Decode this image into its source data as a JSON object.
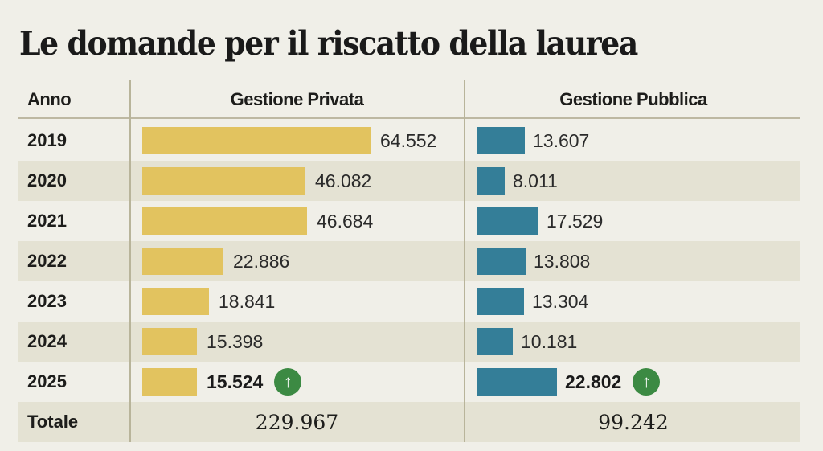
{
  "title": "Le domande per il riscatto della laurea",
  "headers": {
    "year": "Anno",
    "private": "Gestione Privata",
    "public": "Gestione Pubblica"
  },
  "colors": {
    "private": "#e2c35f",
    "public": "#347e98",
    "up_badge": "#3c8a43"
  },
  "rows": [
    {
      "year": "2019",
      "private": "64.552",
      "public": "13.607",
      "private_n": 64552,
      "public_n": 13607
    },
    {
      "year": "2020",
      "private": "46.082",
      "public": "8.011",
      "private_n": 46082,
      "public_n": 8011
    },
    {
      "year": "2021",
      "private": "46.684",
      "public": "17.529",
      "private_n": 46684,
      "public_n": 17529
    },
    {
      "year": "2022",
      "private": "22.886",
      "public": "13.808",
      "private_n": 22886,
      "public_n": 13808
    },
    {
      "year": "2023",
      "private": "18.841",
      "public": "13.304",
      "private_n": 18841,
      "public_n": 13304
    },
    {
      "year": "2024",
      "private": "15.398",
      "public": "10.181",
      "private_n": 15398,
      "public_n": 10181
    },
    {
      "year": "2025",
      "private": "15.524",
      "public": "22.802",
      "private_n": 15524,
      "public_n": 22802,
      "highlight": true,
      "icon": "arrow-up-icon"
    }
  ],
  "total": {
    "label": "Totale",
    "private": "229.967",
    "public": "99.242"
  },
  "up_glyph": "↑",
  "chart_data": {
    "type": "bar",
    "title": "Le domande per il riscatto della laurea",
    "orientation": "horizontal",
    "categories": [
      "2019",
      "2020",
      "2021",
      "2022",
      "2023",
      "2024",
      "2025"
    ],
    "series": [
      {
        "name": "Gestione Privata",
        "values": [
          64552,
          46082,
          46684,
          22886,
          18841,
          15398,
          15524
        ],
        "color": "#e2c35f"
      },
      {
        "name": "Gestione Pubblica",
        "values": [
          13607,
          8011,
          17529,
          13808,
          13304,
          10181,
          22802
        ],
        "color": "#347e98"
      }
    ],
    "totals": {
      "Gestione Privata": 229967,
      "Gestione Pubblica": 99242
    },
    "xlabel": "",
    "ylabel": "Anno",
    "annotations": [
      "2025 values marked with green up-arrow badge"
    ],
    "grid": false,
    "legend": "column headers"
  }
}
